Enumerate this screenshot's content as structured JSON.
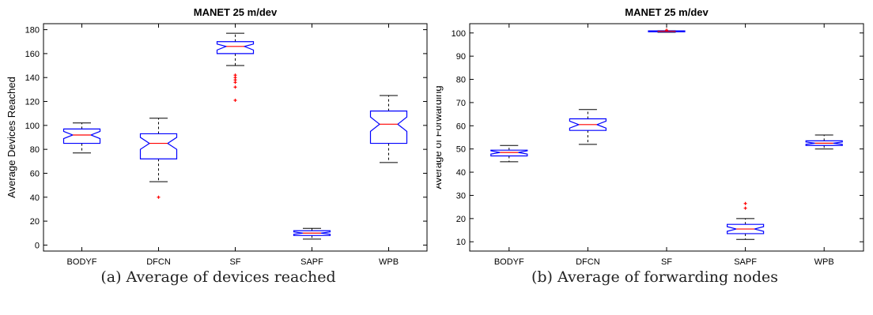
{
  "chart_data": [
    {
      "type": "boxplot",
      "title": "MANET 25 m/dev",
      "xlabel": "",
      "ylabel": "Average Devices Reached",
      "ylim": [
        -5,
        185
      ],
      "yticks": [
        0,
        20,
        40,
        60,
        80,
        100,
        120,
        140,
        160,
        180
      ],
      "categories": [
        "BODYF",
        "DFCN",
        "SF",
        "SAPF",
        "WPB"
      ],
      "boxes": [
        {
          "min": 77,
          "q1": 85,
          "median": 92,
          "q3": 97,
          "max": 102,
          "notch_low": 89,
          "notch_high": 95,
          "outliers": []
        },
        {
          "min": 53,
          "q1": 72,
          "median": 85,
          "q3": 93,
          "max": 106,
          "notch_low": 80,
          "notch_high": 90,
          "outliers": [
            40
          ]
        },
        {
          "min": 150,
          "q1": 160,
          "median": 166,
          "q3": 170,
          "max": 177,
          "notch_low": 163,
          "notch_high": 168,
          "outliers": [
            121,
            132,
            136,
            138,
            140,
            142
          ]
        },
        {
          "min": 5,
          "q1": 8,
          "median": 10,
          "q3": 12,
          "max": 14,
          "notch_low": 9,
          "notch_high": 11,
          "outliers": []
        },
        {
          "min": 69,
          "q1": 85,
          "median": 101,
          "q3": 112,
          "max": 125,
          "notch_low": 95,
          "notch_high": 107,
          "outliers": []
        }
      ],
      "caption": "(a) Average of devices reached",
      "grid": false,
      "colors": {
        "box": "#0000ff",
        "median": "#ff0000",
        "outlier": "#ff0000",
        "whisker": "#000000"
      }
    },
    {
      "type": "boxplot",
      "title": "MANET 25 m/dev",
      "xlabel": "",
      "ylabel": "Average of Forwarding",
      "ylim": [
        6,
        104
      ],
      "yticks": [
        10,
        20,
        30,
        40,
        50,
        60,
        70,
        80,
        90,
        100
      ],
      "categories": [
        "BODYF",
        "DFCN",
        "SF",
        "SAPF",
        "WPB"
      ],
      "boxes": [
        {
          "min": 44.5,
          "q1": 47,
          "median": 48.5,
          "q3": 49.5,
          "max": 51.5,
          "notch_low": 47.8,
          "notch_high": 49.2,
          "outliers": []
        },
        {
          "min": 52,
          "q1": 58,
          "median": 60.5,
          "q3": 63,
          "max": 67,
          "notch_low": 59,
          "notch_high": 62,
          "outliers": []
        },
        {
          "min": 100.3,
          "q1": 100.5,
          "median": 100.7,
          "q3": 100.9,
          "max": 101,
          "notch_low": 100.6,
          "notch_high": 100.8,
          "outliers": [
            101.2
          ]
        },
        {
          "min": 11,
          "q1": 13.5,
          "median": 15.5,
          "q3": 17.5,
          "max": 20,
          "notch_low": 14.5,
          "notch_high": 16.5,
          "outliers": [
            24.5,
            26.5
          ]
        },
        {
          "min": 50,
          "q1": 51.5,
          "median": 52.5,
          "q3": 53.5,
          "max": 56,
          "notch_low": 52,
          "notch_high": 53,
          "outliers": []
        }
      ],
      "caption": "(b) Average of forwarding nodes",
      "grid": false,
      "colors": {
        "box": "#0000ff",
        "median": "#ff0000",
        "outlier": "#ff0000",
        "whisker": "#000000"
      }
    }
  ]
}
